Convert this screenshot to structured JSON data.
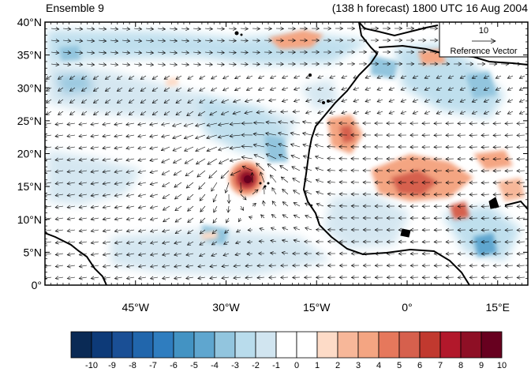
{
  "title_left": "Ensemble 9",
  "title_right": "(138 h forecast) 1800 UTC 16 Aug 2004",
  "reference_vector": {
    "value": "10",
    "label": "Reference Vector"
  },
  "y_ticks": [
    "40°N",
    "35°N",
    "30°N",
    "25°N",
    "20°N",
    "15°N",
    "10°N",
    "5°N",
    "0°"
  ],
  "x_ticks": [
    "45°W",
    "30°W",
    "15°W",
    "0°",
    "15°E"
  ],
  "colorbar": {
    "labels": [
      "-10",
      "-9",
      "-8",
      "-7",
      "-6",
      "-5",
      "-4",
      "-3",
      "-2",
      "-1",
      "0",
      "1",
      "2",
      "3",
      "4",
      "5",
      "6",
      "7",
      "8",
      "9",
      "10"
    ],
    "colors": [
      "#0a2a55",
      "#0d3a78",
      "#1a4f95",
      "#2166ac",
      "#2f7dbf",
      "#4393c3",
      "#5fa6cf",
      "#92c5de",
      "#b9dcec",
      "#d1e5f0",
      "#ffffff",
      "#ffffff",
      "#fddbc7",
      "#f7b799",
      "#f4a582",
      "#e6785c",
      "#d6604d",
      "#c1392f",
      "#b2182b",
      "#8e0f25",
      "#67001f"
    ]
  },
  "map_colors": {
    "land_outline": "#000000",
    "neg": "#92c5de",
    "pos": "#f4a582"
  }
}
